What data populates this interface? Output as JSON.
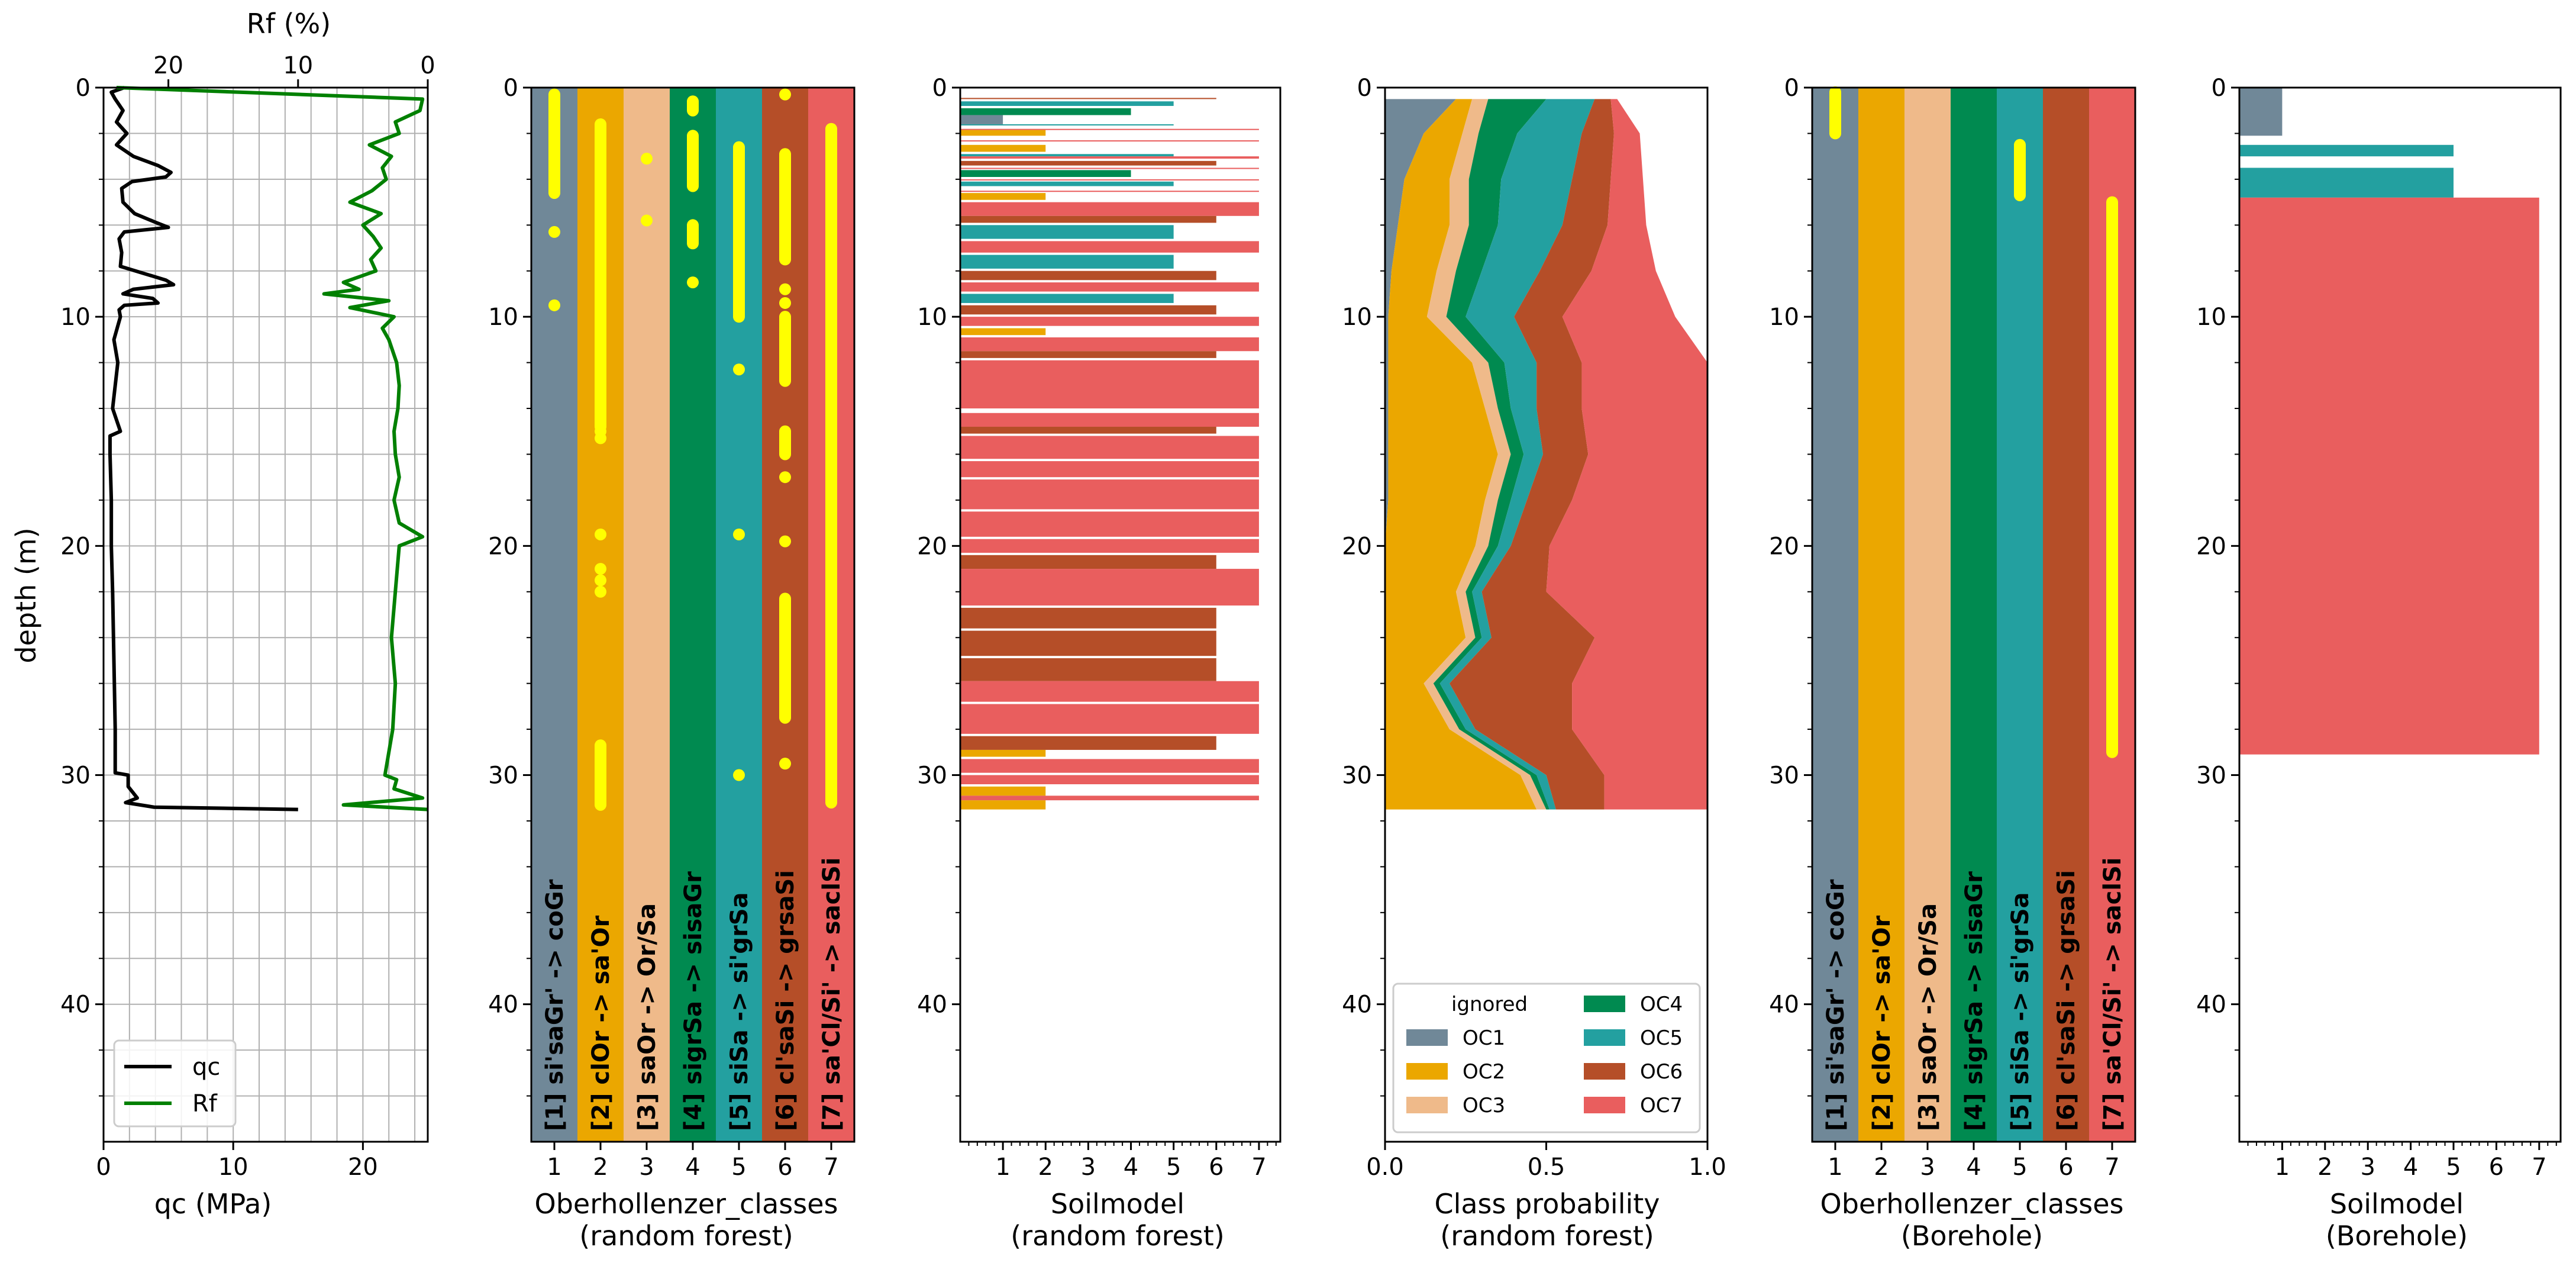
{
  "colors": {
    "OC1": "#708898",
    "OC2": "#EBA700",
    "OC3": "#EFBA8A",
    "OC4": "#008A50",
    "OC5": "#23A0A0",
    "OC6": "#B54E28",
    "OC7": "#E95E5E",
    "marker": "#FFFF00",
    "qc": "#000000",
    "Rf": "#008000",
    "grid": "#B0B0B0"
  },
  "chart_data": [
    {
      "type": "line",
      "panel": "cpt",
      "title": "",
      "xlabel": "qc (MPa)",
      "x2label": "Rf (%)",
      "ylabel": "depth (m)",
      "xlim": [
        0,
        25
      ],
      "x2lim": [
        25,
        0
      ],
      "ylim": [
        46,
        0
      ],
      "xticks": [
        "0",
        "10",
        "20"
      ],
      "x2ticks": [
        "20",
        "10",
        "0"
      ],
      "yticks": [
        "0",
        "10",
        "20",
        "30",
        "40"
      ],
      "grid": true,
      "legend": {
        "location": "lower-left",
        "entries": [
          "qc",
          "Rf"
        ]
      },
      "series": [
        {
          "name": "qc",
          "depth": [
            0.0,
            0.2,
            0.5,
            1.0,
            1.5,
            2.0,
            2.5,
            3.0,
            3.4,
            3.7,
            3.9,
            4.1,
            4.4,
            5.0,
            5.5,
            5.9,
            6.1,
            6.3,
            6.6,
            7.2,
            7.8,
            8.4,
            8.6,
            8.8,
            9.0,
            9.2,
            9.4,
            9.5,
            9.7,
            10.0,
            11.0,
            12.0,
            14.0,
            15.0,
            15.2,
            16.0,
            18.0,
            20.0,
            22.0,
            25.0,
            28.0,
            29.9,
            30.0,
            30.5,
            31.0,
            31.2,
            31.4,
            31.5
          ],
          "values": [
            1.6,
            0.6,
            0.9,
            1.5,
            1.0,
            1.8,
            1.0,
            2.3,
            4.2,
            5.2,
            4.8,
            2.2,
            1.4,
            1.5,
            2.4,
            4.1,
            5.0,
            1.6,
            1.2,
            1.4,
            1.3,
            4.8,
            5.4,
            2.3,
            1.5,
            3.8,
            4.2,
            1.6,
            1.2,
            1.3,
            0.8,
            1.1,
            0.7,
            1.3,
            0.5,
            0.5,
            0.6,
            0.6,
            0.7,
            0.8,
            0.9,
            0.9,
            1.9,
            1.9,
            2.6,
            1.7,
            3.9,
            15.0
          ]
        },
        {
          "name": "Rf",
          "depth": [
            0.0,
            0.5,
            1.0,
            1.5,
            2.0,
            2.5,
            3.0,
            3.5,
            4.0,
            4.5,
            5.0,
            5.5,
            6.0,
            6.5,
            7.0,
            7.5,
            8.0,
            8.5,
            8.8,
            9.0,
            9.3,
            9.6,
            10.0,
            10.5,
            11.0,
            12.0,
            13.0,
            14.0,
            15.0,
            16.0,
            17.0,
            18.0,
            19.0,
            19.6,
            20.0,
            22.0,
            24.0,
            26.0,
            28.0,
            30.0,
            30.2,
            30.6,
            31.0,
            31.3,
            31.5
          ],
          "values": [
            24.0,
            0.4,
            0.6,
            2.5,
            2.2,
            4.5,
            2.8,
            3.5,
            3.2,
            4.3,
            6.0,
            3.6,
            5.0,
            4.2,
            3.6,
            4.4,
            4.0,
            6.5,
            5.3,
            8.0,
            3.0,
            6.0,
            2.6,
            3.5,
            3.0,
            2.4,
            2.2,
            2.3,
            2.6,
            2.5,
            2.2,
            2.6,
            2.2,
            0.4,
            2.2,
            2.5,
            2.8,
            2.5,
            2.7,
            3.3,
            2.4,
            2.6,
            0.4,
            6.5,
            0.0
          ]
        }
      ]
    },
    {
      "type": "scatter",
      "panel": "classes_rf",
      "title": "",
      "xlabel": "Oberhollenzer_classes\n(random forest)",
      "xlabel_lines": [
        "Oberhollenzer_classes",
        "(random forest)"
      ],
      "xlim": [
        0.5,
        7.5
      ],
      "ylim": [
        46,
        0
      ],
      "xticks": [
        "1",
        "2",
        "3",
        "4",
        "5",
        "6",
        "7"
      ],
      "yticks": [
        "0",
        "10",
        "20",
        "30",
        "40"
      ],
      "class_labels": [
        "[1] si'saGr' -> coGr",
        "[2] clOr -> sa'Or",
        "[3] saOr -> Or/Sa",
        "[4] sigrSa -> sisaGr",
        "[5] siSa -> si'grSa",
        "[6] cl'saSi -> grsaSi",
        "[7] sa'Cl/Si' -> saclSi"
      ],
      "points": [
        {
          "class": 1,
          "ranges": [
            [
              0.3,
              4.6
            ]
          ],
          "depths": [
            6.3,
            9.5
          ]
        },
        {
          "class": 2,
          "ranges": [
            [
              1.6,
              14.8
            ],
            [
              28.7,
              31.3
            ]
          ],
          "depths": [
            15.0,
            15.3,
            19.5,
            21.0,
            21.5,
            22.0
          ]
        },
        {
          "class": 3,
          "ranges": [],
          "depths": [
            3.1,
            5.8
          ]
        },
        {
          "class": 4,
          "ranges": [
            [
              0.6,
              1.0
            ],
            [
              2.1,
              4.3
            ],
            [
              6.0,
              6.8
            ]
          ],
          "depths": [
            8.5
          ]
        },
        {
          "class": 5,
          "ranges": [
            [
              2.6,
              10.0
            ]
          ],
          "depths": [
            12.3,
            19.5,
            30.0
          ]
        },
        {
          "class": 6,
          "ranges": [
            [
              2.9,
              7.5
            ],
            [
              10.0,
              12.8
            ],
            [
              15.0,
              16.0
            ],
            [
              22.3,
              27.5
            ]
          ],
          "depths": [
            0.3,
            8.8,
            9.4,
            17.0,
            19.8,
            29.5
          ]
        },
        {
          "class": 7,
          "ranges": [
            [
              1.8,
              31.2
            ]
          ],
          "depths": []
        }
      ]
    },
    {
      "type": "bar",
      "panel": "soilmodel_rf",
      "orientation": "horizontal",
      "title": "",
      "xlabel": "Soilmodel\n(random forest)",
      "xlabel_lines": [
        "Soilmodel",
        "(random forest)"
      ],
      "xlim": [
        0,
        7.5
      ],
      "ylim": [
        46,
        0
      ],
      "xticks": [
        "1",
        "2",
        "3",
        "4",
        "5",
        "6",
        "7"
      ],
      "yticks": [
        "0",
        "10",
        "20",
        "30",
        "40"
      ],
      "segments": [
        {
          "top": 0.45,
          "bottom": 0.5,
          "class": 6
        },
        {
          "top": 0.6,
          "bottom": 0.8,
          "class": 5
        },
        {
          "top": 0.9,
          "bottom": 1.2,
          "class": 4
        },
        {
          "top": 1.2,
          "bottom": 1.6,
          "class": 1
        },
        {
          "top": 1.6,
          "bottom": 1.65,
          "class": 5
        },
        {
          "top": 1.8,
          "bottom": 1.85,
          "class": 7
        },
        {
          "top": 1.85,
          "bottom": 2.1,
          "class": 2
        },
        {
          "top": 2.3,
          "bottom": 2.35,
          "class": 7
        },
        {
          "top": 2.5,
          "bottom": 2.8,
          "class": 2
        },
        {
          "top": 2.9,
          "bottom": 3.0,
          "class": 5
        },
        {
          "top": 3.0,
          "bottom": 3.1,
          "class": 7
        },
        {
          "top": 3.2,
          "bottom": 3.4,
          "class": 6
        },
        {
          "top": 3.5,
          "bottom": 3.55,
          "class": 7
        },
        {
          "top": 3.6,
          "bottom": 3.9,
          "class": 4
        },
        {
          "top": 4.0,
          "bottom": 4.05,
          "class": 7
        },
        {
          "top": 4.1,
          "bottom": 4.3,
          "class": 5
        },
        {
          "top": 4.5,
          "bottom": 4.55,
          "class": 7
        },
        {
          "top": 4.6,
          "bottom": 4.9,
          "class": 2
        },
        {
          "top": 5.0,
          "bottom": 5.6,
          "class": 7
        },
        {
          "top": 5.6,
          "bottom": 5.9,
          "class": 6
        },
        {
          "top": 6.0,
          "bottom": 6.6,
          "class": 5
        },
        {
          "top": 6.7,
          "bottom": 7.2,
          "class": 7
        },
        {
          "top": 7.3,
          "bottom": 7.9,
          "class": 5
        },
        {
          "top": 8.0,
          "bottom": 8.4,
          "class": 6
        },
        {
          "top": 8.5,
          "bottom": 8.9,
          "class": 7
        },
        {
          "top": 9.0,
          "bottom": 9.4,
          "class": 5
        },
        {
          "top": 9.5,
          "bottom": 9.9,
          "class": 6
        },
        {
          "top": 10.0,
          "bottom": 10.4,
          "class": 7
        },
        {
          "top": 10.5,
          "bottom": 10.8,
          "class": 2
        },
        {
          "top": 10.9,
          "bottom": 11.5,
          "class": 7
        },
        {
          "top": 11.5,
          "bottom": 11.8,
          "class": 6
        },
        {
          "top": 11.9,
          "bottom": 14.0,
          "class": 7
        },
        {
          "top": 14.2,
          "bottom": 14.8,
          "class": 7
        },
        {
          "top": 14.8,
          "bottom": 15.1,
          "class": 6
        },
        {
          "top": 15.2,
          "bottom": 16.2,
          "class": 7
        },
        {
          "top": 16.3,
          "bottom": 17.0,
          "class": 7
        },
        {
          "top": 17.1,
          "bottom": 18.4,
          "class": 7
        },
        {
          "top": 18.5,
          "bottom": 19.6,
          "class": 7
        },
        {
          "top": 19.7,
          "bottom": 20.3,
          "class": 7
        },
        {
          "top": 20.4,
          "bottom": 21.0,
          "class": 6
        },
        {
          "top": 21.0,
          "bottom": 22.6,
          "class": 7
        },
        {
          "top": 22.7,
          "bottom": 23.6,
          "class": 6
        },
        {
          "top": 23.7,
          "bottom": 24.8,
          "class": 6
        },
        {
          "top": 24.9,
          "bottom": 25.9,
          "class": 6
        },
        {
          "top": 25.9,
          "bottom": 26.8,
          "class": 7
        },
        {
          "top": 26.9,
          "bottom": 28.2,
          "class": 7
        },
        {
          "top": 28.3,
          "bottom": 28.9,
          "class": 6
        },
        {
          "top": 28.9,
          "bottom": 29.2,
          "class": 2
        },
        {
          "top": 29.3,
          "bottom": 29.9,
          "class": 7
        },
        {
          "top": 30.0,
          "bottom": 30.4,
          "class": 7
        },
        {
          "top": 30.5,
          "bottom": 30.9,
          "class": 2
        },
        {
          "top": 30.9,
          "bottom": 31.1,
          "class": 7
        },
        {
          "top": 31.1,
          "bottom": 31.5,
          "class": 2
        }
      ]
    },
    {
      "type": "area",
      "panel": "class_probability_rf",
      "orientation": "horizontal-stacked",
      "title": "",
      "xlabel": "Class probability\n(random forest)",
      "xlabel_lines": [
        "Class probability",
        "(random forest)"
      ],
      "xlim": [
        0,
        1
      ],
      "ylim": [
        46,
        0
      ],
      "xticks": [
        "0.0",
        "0.5",
        "1.0"
      ],
      "yticks": [
        "0",
        "10",
        "20",
        "30",
        "40"
      ],
      "legend": {
        "location": "lower-center",
        "title": "ignored",
        "entries": [
          "OC1",
          "OC2",
          "OC3",
          "OC4",
          "OC5",
          "OC6",
          "OC7"
        ]
      },
      "depth": [
        0.5,
        2.0,
        4.0,
        6.0,
        8.0,
        10.0,
        12.0,
        14.0,
        16.0,
        18.0,
        20.0,
        22.0,
        24.0,
        26.0,
        28.0,
        30.0,
        31.5
      ],
      "series": [
        {
          "name": "OC1",
          "values": [
            0.22,
            0.12,
            0.06,
            0.04,
            0.02,
            0.01,
            0.01,
            0.01,
            0.01,
            0.01,
            0.0,
            0.0,
            0.0,
            0.0,
            0.0,
            0.0,
            0.0
          ]
        },
        {
          "name": "OC2",
          "values": [
            0.05,
            0.12,
            0.14,
            0.16,
            0.14,
            0.12,
            0.26,
            0.3,
            0.34,
            0.3,
            0.28,
            0.22,
            0.25,
            0.12,
            0.2,
            0.42,
            0.47
          ]
        },
        {
          "name": "OC3",
          "values": [
            0.05,
            0.05,
            0.06,
            0.06,
            0.06,
            0.06,
            0.05,
            0.04,
            0.04,
            0.04,
            0.04,
            0.03,
            0.03,
            0.03,
            0.03,
            0.03,
            0.03
          ]
        },
        {
          "name": "OC4",
          "values": [
            0.18,
            0.12,
            0.1,
            0.09,
            0.08,
            0.06,
            0.05,
            0.04,
            0.04,
            0.04,
            0.03,
            0.02,
            0.02,
            0.02,
            0.02,
            0.02,
            0.01
          ]
        },
        {
          "name": "OC5",
          "values": [
            0.15,
            0.2,
            0.22,
            0.2,
            0.18,
            0.15,
            0.1,
            0.08,
            0.06,
            0.05,
            0.04,
            0.03,
            0.03,
            0.03,
            0.03,
            0.03,
            0.02
          ]
        },
        {
          "name": "OC6",
          "values": [
            0.05,
            0.1,
            0.12,
            0.14,
            0.16,
            0.15,
            0.14,
            0.14,
            0.14,
            0.14,
            0.12,
            0.2,
            0.32,
            0.38,
            0.3,
            0.18,
            0.15
          ]
        },
        {
          "name": "OC7",
          "values": [
            0.02,
            0.08,
            0.1,
            0.12,
            0.2,
            0.35,
            0.39,
            0.39,
            0.37,
            0.42,
            0.49,
            0.5,
            0.35,
            0.42,
            0.42,
            0.32,
            0.32
          ]
        }
      ]
    },
    {
      "type": "scatter",
      "panel": "classes_borehole",
      "title": "",
      "xlabel": "Oberhollenzer_classes\n(Borehole)",
      "xlabel_lines": [
        "Oberhollenzer_classes",
        "(Borehole)"
      ],
      "xlim": [
        0.5,
        7.5
      ],
      "ylim": [
        46,
        0
      ],
      "xticks": [
        "1",
        "2",
        "3",
        "4",
        "5",
        "6",
        "7"
      ],
      "yticks": [
        "0",
        "10",
        "20",
        "30",
        "40"
      ],
      "class_labels": [
        "[1] si'saGr' -> coGr",
        "[2] clOr -> sa'Or",
        "[3] saOr -> Or/Sa",
        "[4] sigrSa -> sisaGr",
        "[5] siSa -> si'grSa",
        "[6] cl'saSi -> grsaSi",
        "[7] sa'Cl/Si' -> saclSi"
      ],
      "points": [
        {
          "class": 1,
          "ranges": [
            [
              0.2,
              2.0
            ]
          ],
          "depths": []
        },
        {
          "class": 5,
          "ranges": [
            [
              2.5,
              4.7
            ]
          ],
          "depths": []
        },
        {
          "class": 7,
          "ranges": [
            [
              5.0,
              29.0
            ]
          ],
          "depths": []
        }
      ]
    },
    {
      "type": "bar",
      "panel": "soilmodel_borehole",
      "orientation": "horizontal",
      "title": "",
      "xlabel": "Soilmodel\n(Borehole)",
      "xlabel_lines": [
        "Soilmodel",
        "(Borehole)"
      ],
      "xlim": [
        0,
        7.5
      ],
      "ylim": [
        46,
        0
      ],
      "xticks": [
        "1",
        "2",
        "3",
        "4",
        "5",
        "6",
        "7"
      ],
      "yticks": [
        "0",
        "10",
        "20",
        "30",
        "40"
      ],
      "segments": [
        {
          "top": 0.0,
          "bottom": 2.1,
          "class": 1
        },
        {
          "top": 2.5,
          "bottom": 3.0,
          "class": 5
        },
        {
          "top": 3.5,
          "bottom": 4.8,
          "class": 5
        },
        {
          "top": 4.8,
          "bottom": 29.1,
          "class": 7
        }
      ]
    }
  ]
}
